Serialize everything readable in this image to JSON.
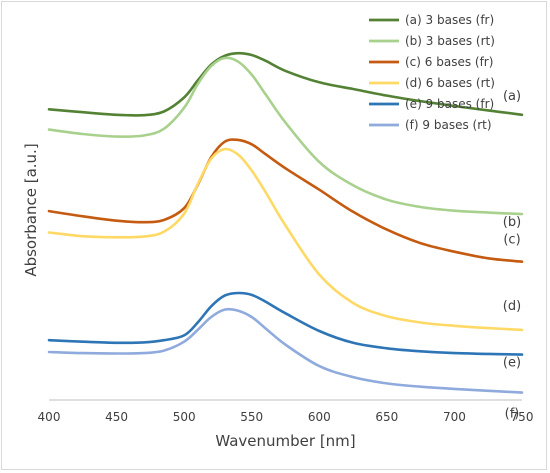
{
  "chart_data": {
    "type": "line",
    "title": "",
    "xlabel": "Wavenumber [nm]",
    "ylabel": "Absorbance [a.u.]",
    "xlim": [
      400,
      750
    ],
    "x_ticks": [
      "400",
      "450",
      "500",
      "550",
      "600",
      "650",
      "700",
      "750"
    ],
    "y_ticks_shown": false,
    "grid": false,
    "legend_position": "top-right",
    "x": [
      400,
      425,
      450,
      470,
      485,
      500,
      510,
      520,
      530,
      540,
      550,
      560,
      575,
      600,
      625,
      650,
      675,
      700,
      725,
      750
    ],
    "series": [
      {
        "name": "(a) 3 bases (fr)",
        "label": "(a)",
        "color": "#548235",
        "values": [
          0.758,
          0.75,
          0.743,
          0.742,
          0.752,
          0.79,
          0.836,
          0.879,
          0.903,
          0.91,
          0.905,
          0.89,
          0.862,
          0.831,
          0.813,
          0.795,
          0.78,
          0.767,
          0.755,
          0.743
        ]
      },
      {
        "name": "(b) 3 bases (rt)",
        "label": "(b)",
        "color": "#a9d18e",
        "values": [
          0.703,
          0.691,
          0.684,
          0.687,
          0.705,
          0.762,
          0.826,
          0.875,
          0.897,
          0.887,
          0.852,
          0.8,
          0.722,
          0.615,
          0.552,
          0.513,
          0.493,
          0.483,
          0.478,
          0.474
        ]
      },
      {
        "name": "(c) 6 bases (fr)",
        "label": "(c)",
        "color": "#c55a11",
        "values": [
          0.482,
          0.468,
          0.456,
          0.452,
          0.458,
          0.49,
          0.553,
          0.628,
          0.67,
          0.675,
          0.663,
          0.637,
          0.598,
          0.54,
          0.48,
          0.432,
          0.395,
          0.372,
          0.354,
          0.345
        ]
      },
      {
        "name": "(d) 6 bases (rt)",
        "label": "(d)",
        "color": "#ffd966",
        "values": [
          0.424,
          0.414,
          0.411,
          0.413,
          0.426,
          0.475,
          0.555,
          0.624,
          0.65,
          0.635,
          0.592,
          0.535,
          0.443,
          0.31,
          0.233,
          0.197,
          0.18,
          0.171,
          0.165,
          0.16
        ]
      },
      {
        "name": "(e) 9 bases (fr)",
        "label": "(e)",
        "color": "#2e75b6",
        "values": [
          0.132,
          0.128,
          0.125,
          0.126,
          0.132,
          0.145,
          0.18,
          0.224,
          0.253,
          0.26,
          0.255,
          0.237,
          0.205,
          0.157,
          0.125,
          0.11,
          0.102,
          0.097,
          0.095,
          0.093
        ]
      },
      {
        "name": "(f) 9 bases (rt)",
        "label": "(f)",
        "color": "#8faadc",
        "values": [
          0.1,
          0.097,
          0.096,
          0.097,
          0.104,
          0.128,
          0.16,
          0.195,
          0.215,
          0.212,
          0.195,
          0.165,
          0.12,
          0.062,
          0.032,
          0.015,
          0.006,
          0.0,
          -0.005,
          -0.01
        ]
      }
    ]
  }
}
